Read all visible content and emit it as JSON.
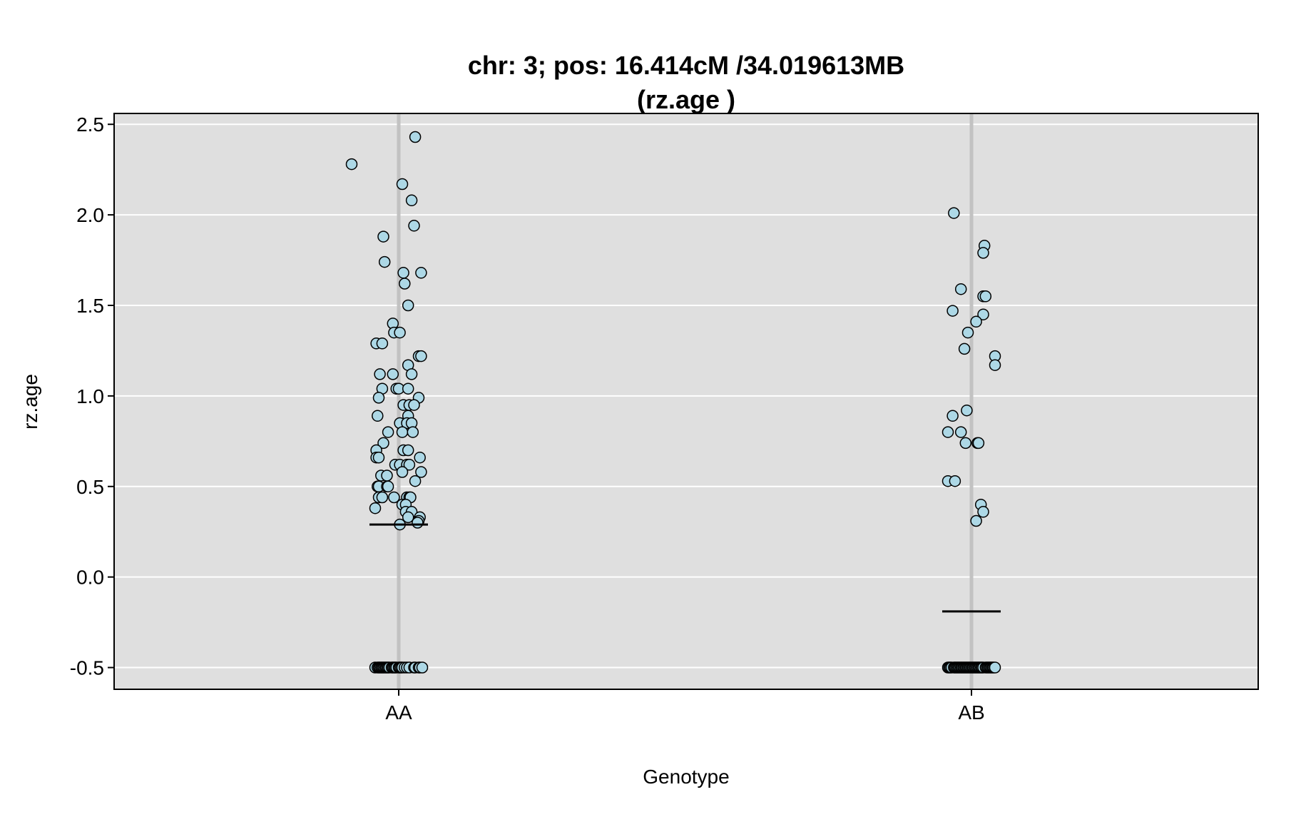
{
  "chart_data": {
    "type": "scatter",
    "title_lines": [
      "chr: 3; pos: 16.414cM /34.019613MB",
      "(rz.age )"
    ],
    "xlabel": "Genotype",
    "ylabel": "rz.age",
    "categories": [
      "AA",
      "AB"
    ],
    "y_ticks": [
      -0.5,
      0.0,
      0.5,
      1.0,
      1.5,
      2.0,
      2.5
    ],
    "y_tick_labels": [
      "-0.5",
      "0.0",
      "0.5",
      "1.0",
      "1.5",
      "2.0",
      "2.5"
    ],
    "ylim": [
      -0.62,
      2.56
    ],
    "grid": true,
    "colors": {
      "panel_bg": "#dfdfdf",
      "grid": "#ffffff",
      "category_line": "#c2c2c2",
      "point_fill": "#add8e6",
      "point_stroke": "#000000",
      "mean": "#000000"
    },
    "means": [
      {
        "category": "AA",
        "value": 0.29
      },
      {
        "category": "AB",
        "value": -0.19
      }
    ],
    "series": [
      {
        "category": "AA",
        "points": [
          {
            "x": -0.4,
            "y": 2.28
          },
          {
            "x": 0.14,
            "y": 2.43
          },
          {
            "x": 0.03,
            "y": 2.17
          },
          {
            "x": 0.11,
            "y": 2.08
          },
          {
            "x": 0.13,
            "y": 1.94
          },
          {
            "x": -0.13,
            "y": 1.88
          },
          {
            "x": -0.12,
            "y": 1.74
          },
          {
            "x": 0.04,
            "y": 1.68
          },
          {
            "x": 0.19,
            "y": 1.68
          },
          {
            "x": 0.05,
            "y": 1.62
          },
          {
            "x": 0.08,
            "y": 1.5
          },
          {
            "x": -0.05,
            "y": 1.4
          },
          {
            "x": -0.04,
            "y": 1.35
          },
          {
            "x": 0.01,
            "y": 1.35
          },
          {
            "x": -0.19,
            "y": 1.29
          },
          {
            "x": -0.14,
            "y": 1.29
          },
          {
            "x": 0.17,
            "y": 1.22
          },
          {
            "x": 0.19,
            "y": 1.22
          },
          {
            "x": 0.08,
            "y": 1.17
          },
          {
            "x": -0.16,
            "y": 1.12
          },
          {
            "x": -0.05,
            "y": 1.12
          },
          {
            "x": 0.11,
            "y": 1.12
          },
          {
            "x": -0.14,
            "y": 1.04
          },
          {
            "x": -0.02,
            "y": 1.04
          },
          {
            "x": 0.0,
            "y": 1.04
          },
          {
            "x": 0.08,
            "y": 1.04
          },
          {
            "x": -0.17,
            "y": 0.99
          },
          {
            "x": 0.17,
            "y": 0.99
          },
          {
            "x": 0.04,
            "y": 0.95
          },
          {
            "x": 0.09,
            "y": 0.95
          },
          {
            "x": 0.13,
            "y": 0.95
          },
          {
            "x": -0.18,
            "y": 0.89
          },
          {
            "x": 0.08,
            "y": 0.89
          },
          {
            "x": 0.01,
            "y": 0.85
          },
          {
            "x": 0.07,
            "y": 0.85
          },
          {
            "x": 0.11,
            "y": 0.85
          },
          {
            "x": -0.09,
            "y": 0.8
          },
          {
            "x": 0.03,
            "y": 0.8
          },
          {
            "x": 0.12,
            "y": 0.8
          },
          {
            "x": -0.13,
            "y": 0.74
          },
          {
            "x": -0.19,
            "y": 0.7
          },
          {
            "x": 0.04,
            "y": 0.7
          },
          {
            "x": 0.08,
            "y": 0.7
          },
          {
            "x": -0.19,
            "y": 0.66
          },
          {
            "x": -0.17,
            "y": 0.66
          },
          {
            "x": 0.18,
            "y": 0.66
          },
          {
            "x": -0.03,
            "y": 0.62
          },
          {
            "x": 0.01,
            "y": 0.62
          },
          {
            "x": 0.07,
            "y": 0.62
          },
          {
            "x": 0.09,
            "y": 0.62
          },
          {
            "x": 0.03,
            "y": 0.58
          },
          {
            "x": 0.19,
            "y": 0.58
          },
          {
            "x": -0.15,
            "y": 0.56
          },
          {
            "x": -0.1,
            "y": 0.56
          },
          {
            "x": 0.14,
            "y": 0.53
          },
          {
            "x": -0.18,
            "y": 0.5
          },
          {
            "x": -0.17,
            "y": 0.5
          },
          {
            "x": -0.1,
            "y": 0.5
          },
          {
            "x": -0.09,
            "y": 0.5
          },
          {
            "x": -0.17,
            "y": 0.44
          },
          {
            "x": -0.14,
            "y": 0.44
          },
          {
            "x": -0.04,
            "y": 0.44
          },
          {
            "x": 0.07,
            "y": 0.44
          },
          {
            "x": 0.09,
            "y": 0.44
          },
          {
            "x": 0.1,
            "y": 0.44
          },
          {
            "x": 0.03,
            "y": 0.4
          },
          {
            "x": 0.06,
            "y": 0.4
          },
          {
            "x": -0.2,
            "y": 0.38
          },
          {
            "x": 0.06,
            "y": 0.36
          },
          {
            "x": 0.11,
            "y": 0.36
          },
          {
            "x": 0.08,
            "y": 0.33
          },
          {
            "x": 0.18,
            "y": 0.33
          },
          {
            "x": 0.17,
            "y": 0.31
          },
          {
            "x": 0.16,
            "y": 0.3
          },
          {
            "x": 0.01,
            "y": 0.29
          },
          {
            "x": -0.2,
            "y": -0.5
          },
          {
            "x": -0.18,
            "y": -0.5
          },
          {
            "x": -0.17,
            "y": -0.5
          },
          {
            "x": -0.16,
            "y": -0.5
          },
          {
            "x": -0.15,
            "y": -0.5
          },
          {
            "x": -0.14,
            "y": -0.5
          },
          {
            "x": -0.13,
            "y": -0.5
          },
          {
            "x": -0.12,
            "y": -0.5
          },
          {
            "x": -0.11,
            "y": -0.5
          },
          {
            "x": -0.1,
            "y": -0.5
          },
          {
            "x": -0.09,
            "y": -0.5
          },
          {
            "x": -0.08,
            "y": -0.5
          },
          {
            "x": -0.06,
            "y": -0.5
          },
          {
            "x": -0.05,
            "y": -0.5
          },
          {
            "x": -0.04,
            "y": -0.5
          },
          {
            "x": -0.03,
            "y": -0.5
          },
          {
            "x": -0.02,
            "y": -0.5
          },
          {
            "x": 0.0,
            "y": -0.5
          },
          {
            "x": 0.01,
            "y": -0.5
          },
          {
            "x": 0.02,
            "y": -0.5
          },
          {
            "x": 0.03,
            "y": -0.5
          },
          {
            "x": 0.05,
            "y": -0.5
          },
          {
            "x": 0.07,
            "y": -0.5
          },
          {
            "x": 0.09,
            "y": -0.5
          },
          {
            "x": 0.13,
            "y": -0.5
          },
          {
            "x": 0.14,
            "y": -0.5
          },
          {
            "x": 0.17,
            "y": -0.5
          },
          {
            "x": 0.18,
            "y": -0.5
          },
          {
            "x": 0.2,
            "y": -0.5
          }
        ]
      },
      {
        "category": "AB",
        "points": [
          {
            "x": -0.15,
            "y": 2.01
          },
          {
            "x": 0.11,
            "y": 1.83
          },
          {
            "x": 0.1,
            "y": 1.79
          },
          {
            "x": -0.09,
            "y": 1.59
          },
          {
            "x": 0.1,
            "y": 1.55
          },
          {
            "x": 0.12,
            "y": 1.55
          },
          {
            "x": -0.16,
            "y": 1.47
          },
          {
            "x": 0.1,
            "y": 1.45
          },
          {
            "x": 0.04,
            "y": 1.41
          },
          {
            "x": -0.03,
            "y": 1.35
          },
          {
            "x": -0.06,
            "y": 1.26
          },
          {
            "x": 0.2,
            "y": 1.22
          },
          {
            "x": 0.2,
            "y": 1.17
          },
          {
            "x": -0.04,
            "y": 0.92
          },
          {
            "x": -0.16,
            "y": 0.89
          },
          {
            "x": -0.2,
            "y": 0.8
          },
          {
            "x": -0.09,
            "y": 0.8
          },
          {
            "x": -0.05,
            "y": 0.74
          },
          {
            "x": 0.05,
            "y": 0.74
          },
          {
            "x": 0.06,
            "y": 0.74
          },
          {
            "x": -0.2,
            "y": 0.53
          },
          {
            "x": -0.14,
            "y": 0.53
          },
          {
            "x": 0.08,
            "y": 0.4
          },
          {
            "x": 0.1,
            "y": 0.36
          },
          {
            "x": 0.04,
            "y": 0.31
          },
          {
            "x": -0.2,
            "y": -0.5
          },
          {
            "x": -0.19,
            "y": -0.5
          },
          {
            "x": -0.18,
            "y": -0.5
          },
          {
            "x": -0.17,
            "y": -0.5
          },
          {
            "x": -0.15,
            "y": -0.5
          },
          {
            "x": -0.14,
            "y": -0.5
          },
          {
            "x": -0.13,
            "y": -0.5
          },
          {
            "x": -0.12,
            "y": -0.5
          },
          {
            "x": -0.11,
            "y": -0.5
          },
          {
            "x": -0.1,
            "y": -0.5
          },
          {
            "x": -0.09,
            "y": -0.5
          },
          {
            "x": -0.08,
            "y": -0.5
          },
          {
            "x": -0.07,
            "y": -0.5
          },
          {
            "x": -0.06,
            "y": -0.5
          },
          {
            "x": -0.05,
            "y": -0.5
          },
          {
            "x": -0.04,
            "y": -0.5
          },
          {
            "x": -0.03,
            "y": -0.5
          },
          {
            "x": -0.02,
            "y": -0.5
          },
          {
            "x": -0.01,
            "y": -0.5
          },
          {
            "x": 0.0,
            "y": -0.5
          },
          {
            "x": 0.01,
            "y": -0.5
          },
          {
            "x": 0.02,
            "y": -0.5
          },
          {
            "x": 0.03,
            "y": -0.5
          },
          {
            "x": 0.04,
            "y": -0.5
          },
          {
            "x": 0.05,
            "y": -0.5
          },
          {
            "x": 0.06,
            "y": -0.5
          },
          {
            "x": 0.07,
            "y": -0.5
          },
          {
            "x": 0.08,
            "y": -0.5
          },
          {
            "x": 0.09,
            "y": -0.5
          },
          {
            "x": 0.1,
            "y": -0.5
          },
          {
            "x": 0.12,
            "y": -0.5
          },
          {
            "x": 0.13,
            "y": -0.5
          },
          {
            "x": 0.14,
            "y": -0.5
          },
          {
            "x": 0.15,
            "y": -0.5
          },
          {
            "x": 0.16,
            "y": -0.5
          },
          {
            "x": 0.17,
            "y": -0.5
          },
          {
            "x": 0.18,
            "y": -0.5
          },
          {
            "x": 0.19,
            "y": -0.5
          },
          {
            "x": 0.2,
            "y": -0.5
          }
        ]
      }
    ]
  }
}
